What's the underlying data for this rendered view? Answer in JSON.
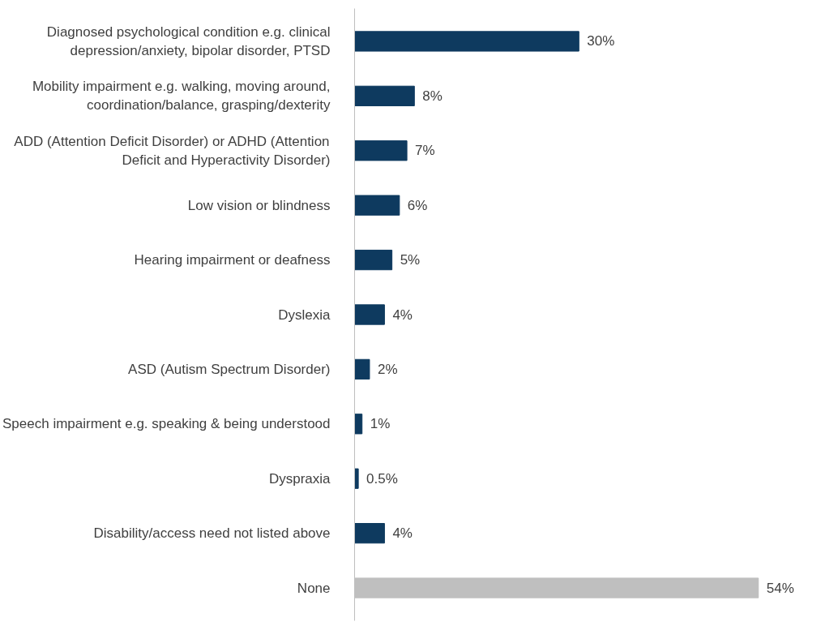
{
  "chart_data": {
    "type": "bar",
    "orientation": "horizontal",
    "categories": [
      "Diagnosed psychological condition e.g. clinical depression/anxiety, bipolar disorder, PTSD",
      "Mobility impairment e.g. walking, moving around, coordination/balance, grasping/dexterity",
      "ADD (Attention Deficit Disorder) or ADHD (Attention Deficit and Hyperactivity Disorder)",
      "Low vision or blindness",
      "Hearing impairment or deafness",
      "Dyslexia",
      "ASD (Autism Spectrum Disorder)",
      "Speech impairment e.g. speaking & being understood",
      "Dyspraxia",
      "Disability/access need not listed above",
      "None"
    ],
    "values": [
      30,
      8,
      7,
      6,
      5,
      4,
      2,
      1,
      0.5,
      4,
      54
    ],
    "colors": [
      "#0e3a5f",
      "#0e3a5f",
      "#0e3a5f",
      "#0e3a5f",
      "#0e3a5f",
      "#0e3a5f",
      "#0e3a5f",
      "#0e3a5f",
      "#0e3a5f",
      "#0e3a5f",
      "#bfbfbf"
    ],
    "data_labels": true,
    "value_labels": [
      "30%",
      "8%",
      "7%",
      "6%",
      "5%",
      "4%",
      "2%",
      "1%",
      "0.5%",
      "4%",
      "54%"
    ],
    "tick_labels": "y",
    "grid": false
  }
}
